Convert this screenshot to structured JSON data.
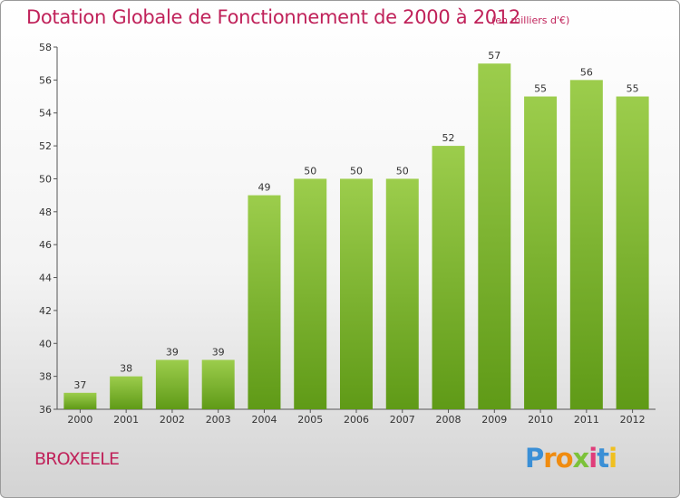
{
  "header": {
    "title": "Dotation Globale de Fonctionnement de 2000 à 2012",
    "unit": "(en milliers d'€)"
  },
  "footer": {
    "commune": "BROXEELE",
    "logo_letters": [
      "P",
      "r",
      "o",
      "x",
      "i",
      "t",
      "i"
    ]
  },
  "colors": {
    "title": "#c0225a",
    "bar_light": "#9ccd4c",
    "bar_dark": "#5f9a17",
    "logo_letters": [
      "#3a8fd6",
      "#f08c10",
      "#f08c10",
      "#7cc23a",
      "#e03d7a",
      "#3a8fd6",
      "#f0c020"
    ]
  },
  "chart_data": {
    "type": "bar",
    "title": "Dotation Globale de Fonctionnement de 2000 à 2012",
    "categories": [
      "2000",
      "2001",
      "2002",
      "2003",
      "2004",
      "2005",
      "2006",
      "2007",
      "2008",
      "2009",
      "2010",
      "2011",
      "2012"
    ],
    "values": [
      37,
      38,
      39,
      39,
      49,
      50,
      50,
      50,
      52,
      57,
      55,
      56,
      55
    ],
    "ylim": [
      36,
      58
    ],
    "yticks": [
      36,
      38,
      40,
      42,
      44,
      46,
      48,
      50,
      52,
      54,
      56,
      58
    ],
    "xlabel": "",
    "ylabel": "",
    "grid": false,
    "legend": "none"
  }
}
